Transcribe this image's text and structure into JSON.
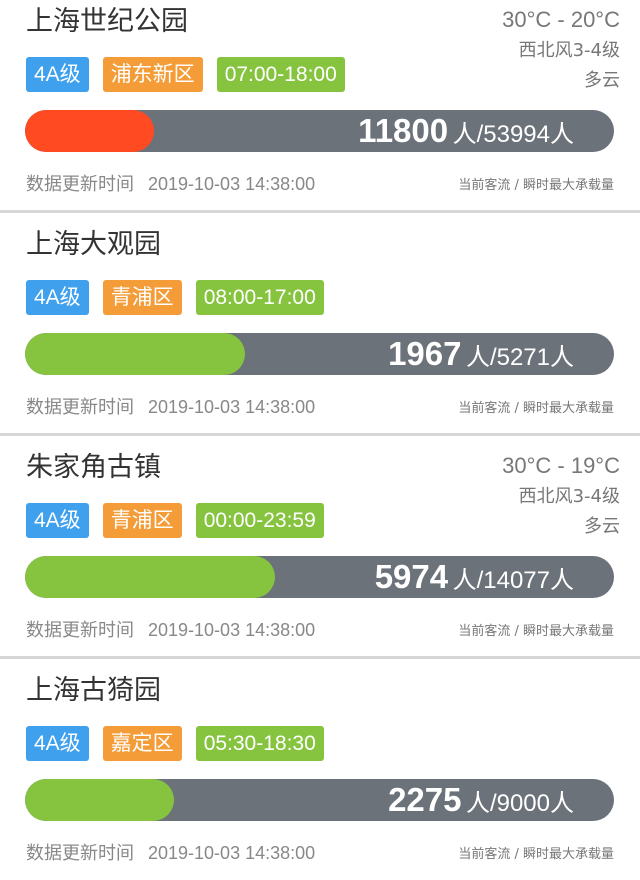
{
  "colors": {
    "level": "#3fa0ee",
    "district": "#f39c38",
    "hours": "#86c440",
    "bar_track": "#6c7279",
    "fill_busy": "#ff4a22",
    "fill_normal": "#86c440"
  },
  "labels": {
    "update_label": "数据更新时间",
    "legend": "当前客流 / 瞬时最大承载量",
    "person_unit": "人"
  },
  "parks": [
    {
      "name": "上海世纪公园",
      "level": "4A级",
      "district": "浦东新区",
      "hours": "07:00-18:00",
      "current": "11800",
      "capacity": "53994人",
      "fill_pct": 21.9,
      "fill": "busy",
      "updated": "2019-10-03 14:38:00",
      "weather": {
        "temp": "30°C - 20°C",
        "wind": "西北风3-4级",
        "sky": "多云"
      }
    },
    {
      "name": "上海大观园",
      "level": "4A级",
      "district": "青浦区",
      "hours": "08:00-17:00",
      "current": "1967",
      "capacity": "5271人",
      "fill_pct": 37.3,
      "fill": "normal",
      "updated": "2019-10-03 14:38:00"
    },
    {
      "name": "朱家角古镇",
      "level": "4A级",
      "district": "青浦区",
      "hours": "00:00-23:59",
      "current": "5974",
      "capacity": "14077人",
      "fill_pct": 42.4,
      "fill": "normal",
      "updated": "2019-10-03 14:38:00",
      "weather": {
        "temp": "30°C - 19°C",
        "wind": "西北风3-4级",
        "sky": "多云"
      }
    },
    {
      "name": "上海古猗园",
      "level": "4A级",
      "district": "嘉定区",
      "hours": "05:30-18:30",
      "current": "2275",
      "capacity": "9000人",
      "fill_pct": 25.3,
      "fill": "normal",
      "updated": "2019-10-03 14:38:00"
    }
  ]
}
